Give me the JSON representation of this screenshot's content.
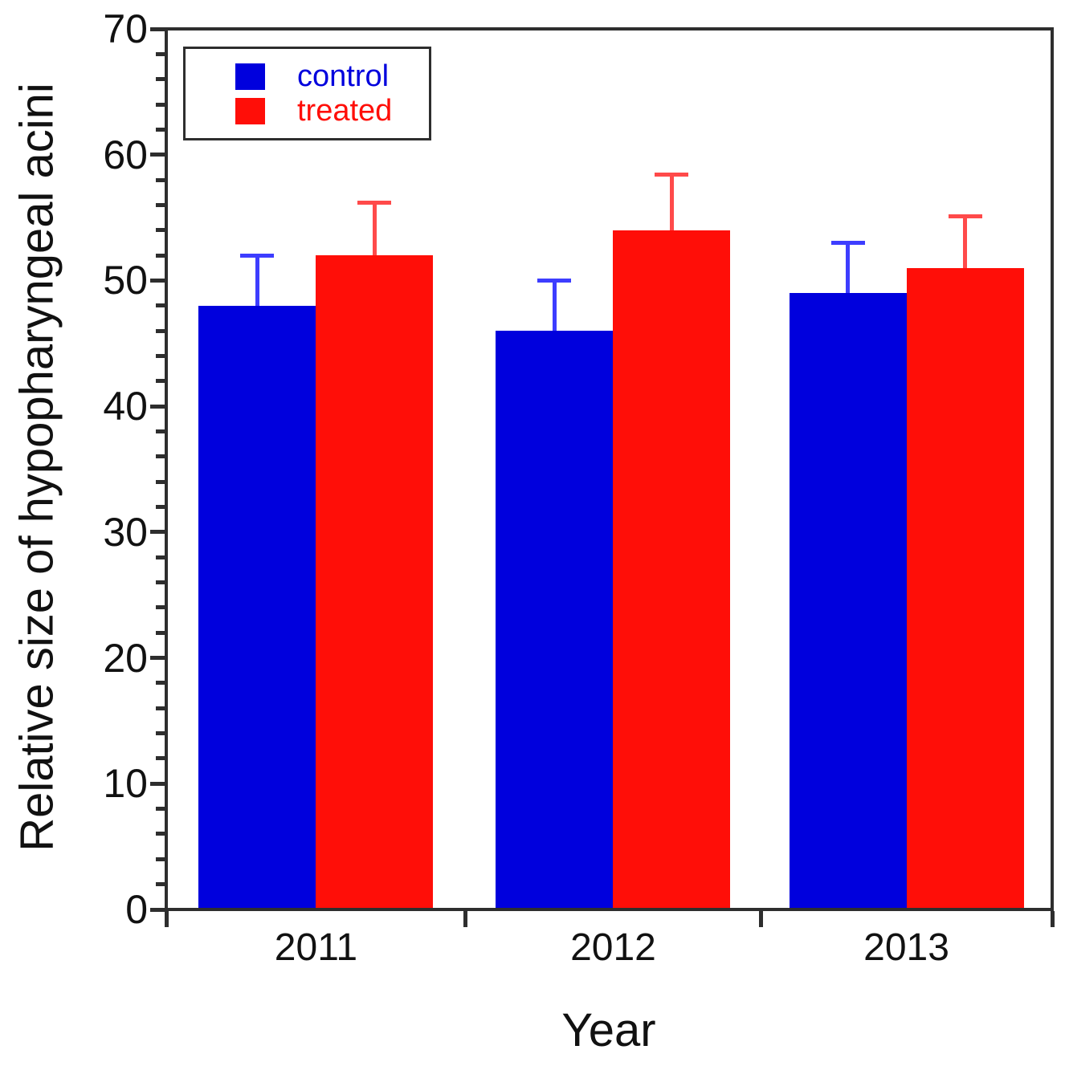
{
  "chart_data": {
    "type": "bar",
    "title": "",
    "xlabel": "Year",
    "ylabel": "Relative size of hypopharyngeal acini",
    "categories": [
      "2011",
      "2012",
      "2013"
    ],
    "series": [
      {
        "name": "control",
        "color": "#0000dd",
        "error_color": "#3d3dff",
        "values": [
          48,
          46,
          49
        ],
        "errors": [
          4,
          4,
          4
        ]
      },
      {
        "name": "treated",
        "color": "#ff0e08",
        "error_color": "#ff4a4a",
        "values": [
          52,
          54,
          51
        ],
        "errors": [
          4.2,
          4.4,
          4.1
        ]
      }
    ],
    "ylim": [
      0,
      70
    ],
    "ytick_step": 10,
    "yminor_step": 2,
    "y_tick_labels": [
      "0",
      "10",
      "20",
      "30",
      "40",
      "50",
      "60",
      "70"
    ],
    "grid": false,
    "legend_position": "top-left",
    "error_bars": "upper-only",
    "frame_color": "#2e2e2e",
    "text_color": "#111111",
    "background_color": "#ffffff"
  }
}
